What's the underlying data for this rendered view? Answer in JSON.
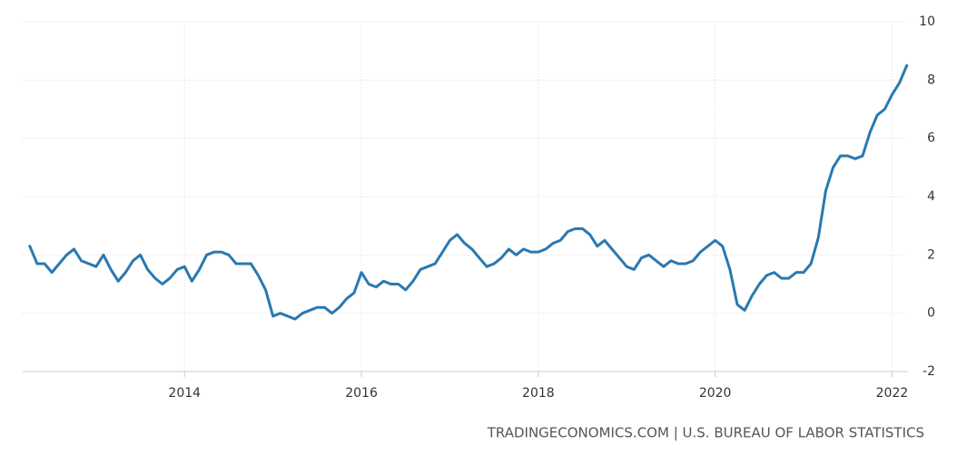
{
  "chart_data": {
    "type": "line",
    "source": "TRADINGECONOMICS.COM | U.S. BUREAU OF LABOR STATISTICS",
    "x": [
      2012.25,
      2012.333,
      2012.417,
      2012.5,
      2012.583,
      2012.667,
      2012.75,
      2012.833,
      2012.917,
      2013,
      2013.083,
      2013.167,
      2013.25,
      2013.333,
      2013.417,
      2013.5,
      2013.583,
      2013.667,
      2013.75,
      2013.833,
      2013.917,
      2014,
      2014.083,
      2014.167,
      2014.25,
      2014.333,
      2014.417,
      2014.5,
      2014.583,
      2014.667,
      2014.75,
      2014.833,
      2014.917,
      2015,
      2015.083,
      2015.167,
      2015.25,
      2015.333,
      2015.417,
      2015.5,
      2015.583,
      2015.667,
      2015.75,
      2015.833,
      2015.917,
      2016,
      2016.083,
      2016.167,
      2016.25,
      2016.333,
      2016.417,
      2016.5,
      2016.583,
      2016.667,
      2016.75,
      2016.833,
      2016.917,
      2017,
      2017.083,
      2017.167,
      2017.25,
      2017.333,
      2017.417,
      2017.5,
      2017.583,
      2017.667,
      2017.75,
      2017.833,
      2017.917,
      2018,
      2018.083,
      2018.167,
      2018.25,
      2018.333,
      2018.417,
      2018.5,
      2018.583,
      2018.667,
      2018.75,
      2018.833,
      2018.917,
      2019,
      2019.083,
      2019.167,
      2019.25,
      2019.333,
      2019.417,
      2019.5,
      2019.583,
      2019.667,
      2019.75,
      2019.833,
      2019.917,
      2020,
      2020.083,
      2020.167,
      2020.25,
      2020.333,
      2020.417,
      2020.5,
      2020.583,
      2020.667,
      2020.75,
      2020.833,
      2020.917,
      2021,
      2021.083,
      2021.167,
      2021.25,
      2021.333,
      2021.417,
      2021.5,
      2021.583,
      2021.667,
      2021.75,
      2021.833,
      2021.917,
      2022,
      2022.083,
      2022.167
    ],
    "series": [
      {
        "color": "#2a78b0",
        "values": [
          2.3,
          1.7,
          1.7,
          1.4,
          1.7,
          2.0,
          2.2,
          1.8,
          1.7,
          1.6,
          2.0,
          1.5,
          1.1,
          1.4,
          1.8,
          2.0,
          1.5,
          1.2,
          1.0,
          1.2,
          1.5,
          1.6,
          1.1,
          1.5,
          2.0,
          2.1,
          2.1,
          2.0,
          1.7,
          1.7,
          1.7,
          1.3,
          0.8,
          -0.1,
          0.0,
          -0.1,
          -0.2,
          0.0,
          0.1,
          0.2,
          0.2,
          0.0,
          0.2,
          0.5,
          0.7,
          1.4,
          1.0,
          0.9,
          1.1,
          1.0,
          1.0,
          0.8,
          1.1,
          1.5,
          1.6,
          1.7,
          2.1,
          2.5,
          2.7,
          2.4,
          2.2,
          1.9,
          1.6,
          1.7,
          1.9,
          2.2,
          2.0,
          2.2,
          2.1,
          2.1,
          2.2,
          2.4,
          2.5,
          2.8,
          2.9,
          2.9,
          2.7,
          2.3,
          2.5,
          2.2,
          1.9,
          1.6,
          1.5,
          1.9,
          2.0,
          1.8,
          1.6,
          1.8,
          1.7,
          1.7,
          1.8,
          2.1,
          2.3,
          2.5,
          2.3,
          1.5,
          0.3,
          0.1,
          0.6,
          1.0,
          1.3,
          1.4,
          1.2,
          1.2,
          1.4,
          1.4,
          1.7,
          2.6,
          4.2,
          5.0,
          5.4,
          5.4,
          5.3,
          5.4,
          6.2,
          6.8,
          7.0,
          7.5,
          7.9,
          8.5
        ]
      }
    ],
    "xlim": [
      2012.17,
      2022.18
    ],
    "xticks": [
      2014,
      2016,
      2018,
      2020,
      2022
    ],
    "ylim": [
      -2,
      10
    ],
    "yticks": [
      -2,
      0,
      2,
      4,
      6,
      8,
      10
    ],
    "grid": true
  }
}
